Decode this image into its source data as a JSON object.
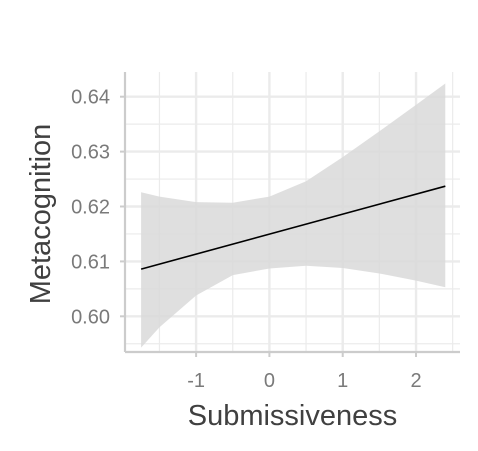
{
  "chart_data": {
    "type": "line",
    "title": "",
    "xlabel": "Submissiveness",
    "ylabel": "Metacognition",
    "xlim": [
      -1.97,
      2.6
    ],
    "ylim": [
      0.5935,
      0.6445
    ],
    "x_ticks": [
      -1,
      0,
      1,
      2
    ],
    "y_ticks": [
      0.6,
      0.61,
      0.62,
      0.63,
      0.64
    ],
    "x_tick_labels": [
      "-1",
      "0",
      "1",
      "2"
    ],
    "y_tick_labels": [
      "0.60",
      "0.61",
      "0.62",
      "0.63",
      "0.64"
    ],
    "grid": true,
    "legend": "none",
    "colors": {
      "line": "#000000",
      "ribbon": "#d9d9d9",
      "grid": "#ebebeb",
      "axis": "#cccccc"
    },
    "series": [
      {
        "x": [
          -1.75,
          2.4
        ],
        "y": [
          0.6086,
          0.6237
        ]
      }
    ],
    "confidence_band": {
      "x": [
        -1.75,
        -1.5,
        -1.0,
        -0.5,
        0.0,
        0.5,
        1.0,
        1.5,
        2.0,
        2.4
      ],
      "upper": [
        0.6226,
        0.6218,
        0.6208,
        0.6207,
        0.6218,
        0.6246,
        0.629,
        0.6337,
        0.6385,
        0.6424
      ],
      "lower": [
        0.5943,
        0.598,
        0.6038,
        0.6075,
        0.6087,
        0.6092,
        0.6088,
        0.6078,
        0.6065,
        0.6053
      ]
    }
  }
}
